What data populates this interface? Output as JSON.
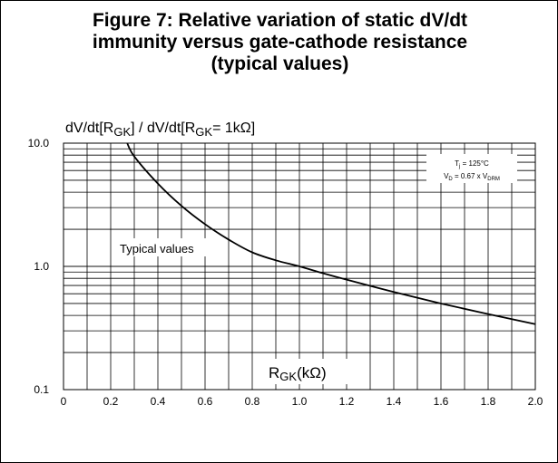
{
  "chart_data": {
    "type": "line",
    "title_lines": [
      "Figure 7: Relative variation of static dV/dt",
      "immunity versus gate-cathode resistance",
      "(typical values)"
    ],
    "ylabel": {
      "prefix": "dV/dt[R",
      "sub1": "GK",
      "middle": "] / dV/dt[R",
      "sub2": "GK",
      "suffix": "= 1kΩ]"
    },
    "xlabel": {
      "main": "R",
      "sub": "GK",
      "suffix": "(kΩ)"
    },
    "x_ticks": [
      "0",
      "0.2",
      "0.4",
      "0.6",
      "0.8",
      "1.0",
      "1.2",
      "1.4",
      "1.6",
      "1.8",
      "2.0"
    ],
    "y_ticks": [
      "10.0",
      "1.0",
      "0.1"
    ],
    "xlim": [
      0,
      2.0
    ],
    "ylim": [
      0.1,
      10.0
    ],
    "y_scale": "log",
    "grid": true,
    "series": [
      {
        "name": "Typical values",
        "color": "#000000",
        "x": [
          0.27,
          0.3,
          0.4,
          0.5,
          0.6,
          0.7,
          0.8,
          0.9,
          1.0,
          1.1,
          1.2,
          1.4,
          1.6,
          1.8,
          2.0
        ],
        "y": [
          10.0,
          7.8,
          4.7,
          3.1,
          2.2,
          1.65,
          1.3,
          1.12,
          1.0,
          0.88,
          0.78,
          0.62,
          0.5,
          0.41,
          0.34
        ]
      }
    ],
    "annotations": {
      "curve_label": "Typical values",
      "cond1": {
        "main": "T",
        "sub": "j",
        "rest": " = 125°C"
      },
      "cond2": {
        "main": "V",
        "sub": "D",
        "rest": " = 0.67 x V",
        "sub2": "DRM"
      }
    }
  }
}
